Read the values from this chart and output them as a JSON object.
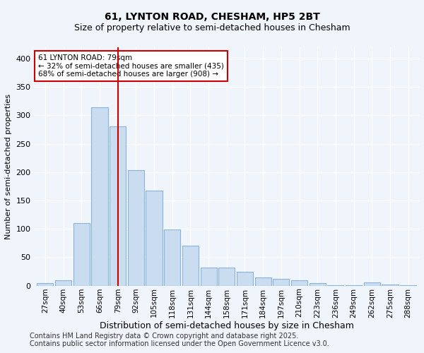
{
  "title_line1": "61, LYNTON ROAD, CHESHAM, HP5 2BT",
  "title_line2": "Size of property relative to semi-detached houses in Chesham",
  "xlabel": "Distribution of semi-detached houses by size in Chesham",
  "ylabel": "Number of semi-detached properties",
  "categories": [
    "27sqm",
    "40sqm",
    "53sqm",
    "66sqm",
    "79sqm",
    "92sqm",
    "105sqm",
    "118sqm",
    "131sqm",
    "144sqm",
    "158sqm",
    "171sqm",
    "184sqm",
    "197sqm",
    "210sqm",
    "223sqm",
    "236sqm",
    "249sqm",
    "262sqm",
    "275sqm",
    "288sqm"
  ],
  "values": [
    5,
    10,
    110,
    314,
    280,
    203,
    168,
    99,
    70,
    32,
    32,
    24,
    14,
    12,
    10,
    4,
    1,
    1,
    6,
    2,
    1
  ],
  "bar_color": "#c9dcf0",
  "bar_edge_color": "#8ab4d8",
  "highlight_index": 4,
  "highlight_line_color": "#cc0000",
  "annotation_text": "61 LYNTON ROAD: 79sqm\n← 32% of semi-detached houses are smaller (435)\n68% of semi-detached houses are larger (908) →",
  "annotation_box_facecolor": "#ffffff",
  "annotation_box_edgecolor": "#cc0000",
  "ylim": [
    0,
    420
  ],
  "yticks": [
    0,
    50,
    100,
    150,
    200,
    250,
    300,
    350,
    400
  ],
  "footer_line1": "Contains HM Land Registry data © Crown copyright and database right 2025.",
  "footer_line2": "Contains public sector information licensed under the Open Government Licence v3.0.",
  "bg_color": "#f0f4fb",
  "plot_bg_color": "#f0f4fb",
  "grid_color": "#ffffff",
  "title_fontsize": 10,
  "subtitle_fontsize": 9,
  "footer_fontsize": 7
}
